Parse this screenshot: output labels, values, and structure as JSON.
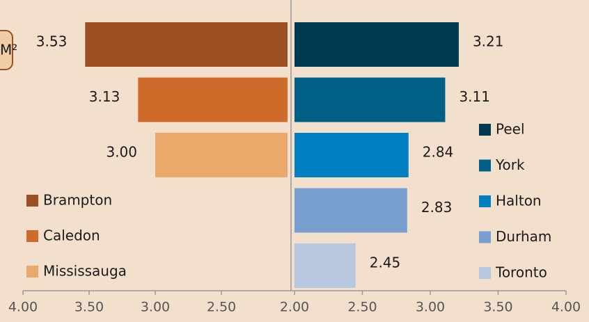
{
  "chart_data": [
    {
      "type": "bar",
      "orientation": "horizontal",
      "annotation": "M²",
      "categories": [
        "Brampton",
        "Caledon",
        "Mississauga"
      ],
      "values": [
        3.53,
        3.13,
        3.0
      ],
      "value_labels": [
        "3.53",
        "3.13",
        "3.00"
      ],
      "colors": [
        "#9c4f23",
        "#cf6b2a",
        "#eaa96a"
      ],
      "xlim": [
        4,
        2
      ],
      "xticks": [
        {
          "value": 4,
          "label": "4.00"
        },
        {
          "value": 3.5,
          "label": "3.50"
        },
        {
          "value": 3,
          "label": "3.00"
        },
        {
          "value": 2.5,
          "label": "2.50"
        }
      ]
    },
    {
      "type": "bar",
      "orientation": "horizontal",
      "categories": [
        "Peel",
        "York",
        "Halton",
        "Durham",
        "Toronto"
      ],
      "values": [
        3.21,
        3.11,
        2.84,
        2.83,
        2.45
      ],
      "value_labels": [
        "3.21",
        "3.11",
        "2.84",
        "2.83",
        "2.45"
      ],
      "colors": [
        "#003a52",
        "#005f87",
        "#0080c0",
        "#789fd0",
        "#b7c7e0"
      ],
      "xlim": [
        2,
        4
      ],
      "xticks": [
        {
          "value": 2,
          "label": "2.00"
        },
        {
          "value": 2.5,
          "label": "2.50"
        },
        {
          "value": 3,
          "label": "3.00"
        },
        {
          "value": 3.5,
          "label": "3.50"
        },
        {
          "value": 4,
          "label": "4.00"
        }
      ]
    }
  ]
}
